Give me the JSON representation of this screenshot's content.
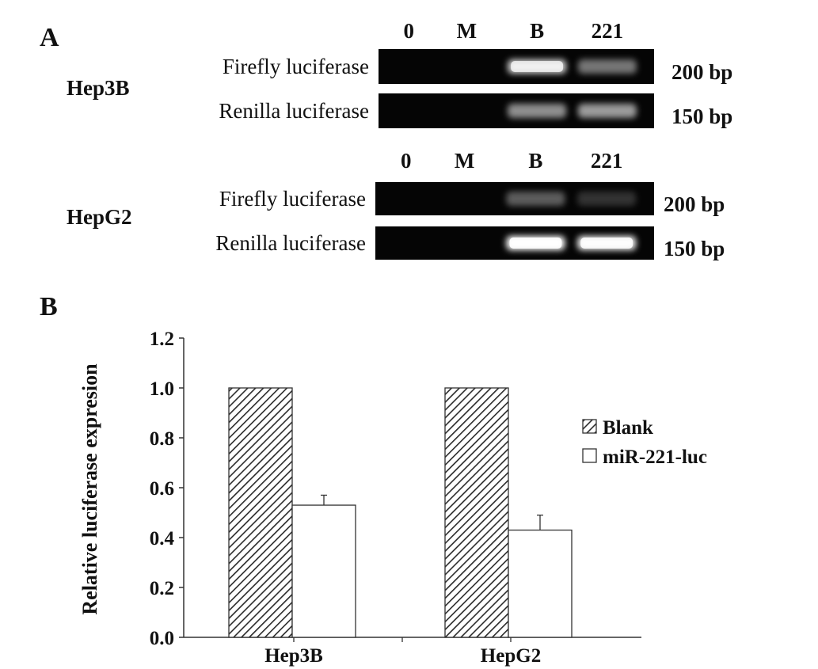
{
  "panel_a": {
    "label": "A",
    "colors": {
      "gel_background": "#050505",
      "band": "#ffffff"
    },
    "blots": [
      {
        "cell_line": "Hep3B",
        "lanes": [
          "0",
          "M",
          "B",
          "221"
        ],
        "rows": [
          {
            "name": "Firefly luciferase",
            "size": "200 bp",
            "band_intensity": [
              0,
              0,
              0.8,
              0.45
            ]
          },
          {
            "name": "Renilla luciferase",
            "size": "150 bp",
            "band_intensity": [
              0,
              0,
              0.55,
              0.6
            ]
          }
        ]
      },
      {
        "cell_line": "HepG2",
        "lanes": [
          "0",
          "M",
          "B",
          "221"
        ],
        "rows": [
          {
            "name": "Firefly luciferase",
            "size": "200 bp",
            "band_intensity": [
              0,
              0,
              0.35,
              0.18
            ]
          },
          {
            "name": "Renilla luciferase",
            "size": "150 bp",
            "band_intensity": [
              0,
              0,
              1.0,
              0.95
            ]
          }
        ]
      }
    ]
  },
  "chart_data": {
    "label": "B",
    "type": "bar",
    "categories": [
      "Hep3B",
      "HepG2"
    ],
    "series": [
      {
        "name": "Blank",
        "values": [
          1.0,
          1.0
        ],
        "errors": [
          0,
          0
        ],
        "fill": "hatched"
      },
      {
        "name": "miR-221-luc",
        "values": [
          0.53,
          0.43
        ],
        "errors": [
          0.04,
          0.06
        ],
        "fill": "white"
      }
    ],
    "ylabel": "Relative luciferase expresion",
    "xlabel": "",
    "ylim": [
      0.0,
      1.2
    ],
    "yticks": [
      "0.0",
      "0.2",
      "0.4",
      "0.6",
      "0.8",
      "1.0",
      "1.2"
    ],
    "legend_position": "right",
    "grid": false
  }
}
